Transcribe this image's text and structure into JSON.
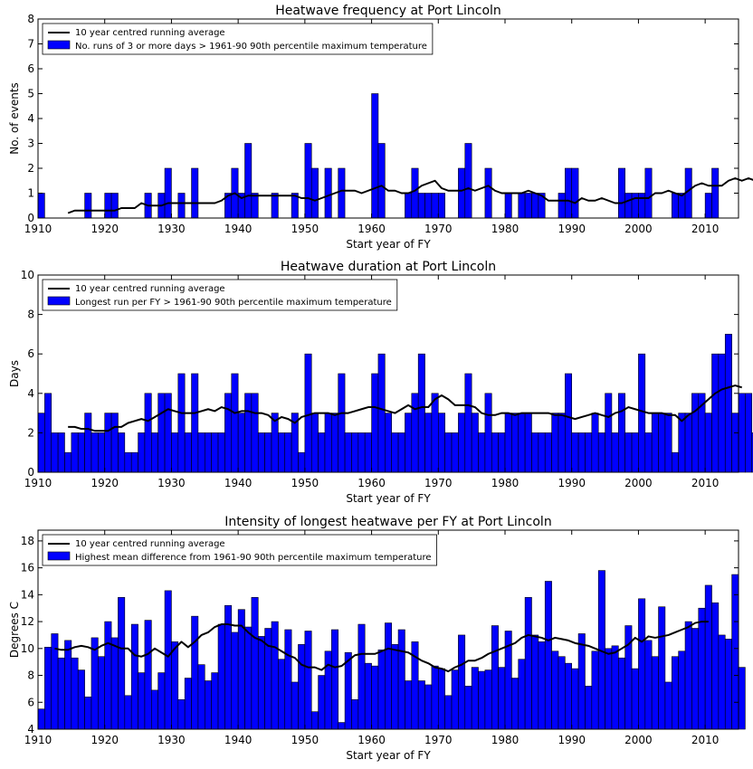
{
  "chart_data": [
    {
      "type": "bar",
      "title": "Heatwave frequency at Port Lincoln",
      "xlabel": "Start year of FY",
      "ylabel": "No. of events",
      "xlim": [
        1910,
        2015
      ],
      "ylim": [
        0,
        8
      ],
      "xticks": [
        1910,
        1920,
        1930,
        1940,
        1950,
        1960,
        1970,
        1980,
        1990,
        2000,
        2010
      ],
      "yticks": [
        0,
        1,
        2,
        3,
        4,
        5,
        6,
        7,
        8
      ],
      "grid": false,
      "legend_position": "top-left",
      "legend_line": "10 year centred running average",
      "legend_bar": "No. runs of 3 or more days > 1961-90 90th percentile maximum temperature",
      "bar_color": "#0000ff",
      "line_color": "#000000",
      "bar_years_start": 1910,
      "values": [
        1,
        0,
        0,
        0,
        0,
        0,
        0,
        1,
        0,
        0,
        1,
        1,
        0,
        0,
        0,
        0,
        1,
        0,
        1,
        2,
        0,
        1,
        0,
        2,
        0,
        0,
        0,
        0,
        1,
        2,
        1,
        3,
        1,
        0,
        0,
        1,
        0,
        0,
        1,
        0,
        3,
        2,
        0,
        2,
        0,
        2,
        0,
        0,
        0,
        0,
        5,
        3,
        0,
        0,
        0,
        1,
        2,
        1,
        1,
        1,
        1,
        0,
        0,
        2,
        3,
        0,
        0,
        2,
        0,
        0,
        1,
        0,
        1,
        1,
        1,
        1,
        0,
        0,
        1,
        2,
        2,
        0,
        0,
        0,
        0,
        0,
        0,
        2,
        1,
        1,
        1,
        2,
        0,
        0,
        0,
        1,
        1,
        2,
        0,
        0,
        1,
        2,
        0
      ],
      "avg_start": 1914,
      "running_avg": [
        0.2,
        0.3,
        0.3,
        0.3,
        0.3,
        0.3,
        0.3,
        0.3,
        0.4,
        0.4,
        0.4,
        0.6,
        0.5,
        0.5,
        0.5,
        0.6,
        0.6,
        0.6,
        0.6,
        0.6,
        0.6,
        0.6,
        0.6,
        0.7,
        0.9,
        1.0,
        0.8,
        0.9,
        0.9,
        0.9,
        0.9,
        0.9,
        0.9,
        0.9,
        0.9,
        0.8,
        0.8,
        0.7,
        0.8,
        0.9,
        1.0,
        1.1,
        1.1,
        1.1,
        1.0,
        1.1,
        1.2,
        1.3,
        1.1,
        1.1,
        1.0,
        1.0,
        1.1,
        1.3,
        1.4,
        1.5,
        1.2,
        1.1,
        1.1,
        1.1,
        1.2,
        1.1,
        1.2,
        1.3,
        1.1,
        1.0,
        1.0,
        1.0,
        1.0,
        1.1,
        1.0,
        0.9,
        0.7,
        0.7,
        0.7,
        0.7,
        0.6,
        0.8,
        0.7,
        0.7,
        0.8,
        0.7,
        0.6,
        0.6,
        0.7,
        0.8,
        0.8,
        0.8,
        1.0,
        1.0,
        1.1,
        1.0,
        0.9,
        1.1,
        1.3,
        1.4,
        1.3,
        1.3,
        1.3,
        1.5,
        1.6,
        1.5,
        1.6,
        1.5,
        1.5
      ]
    },
    {
      "type": "bar",
      "title": "Heatwave duration at Port Lincoln",
      "xlabel": "Start year of FY",
      "ylabel": "Days",
      "xlim": [
        1910,
        2015
      ],
      "ylim": [
        0,
        10
      ],
      "xticks": [
        1910,
        1920,
        1930,
        1940,
        1950,
        1960,
        1970,
        1980,
        1990,
        2000,
        2010
      ],
      "yticks": [
        0,
        2,
        4,
        6,
        8,
        10
      ],
      "grid": false,
      "legend_position": "top-left",
      "legend_line": "10 year centred running average",
      "legend_bar": "Longest run per FY > 1961-90 90th percentile maximum temperature",
      "bar_color": "#0000ff",
      "line_color": "#000000",
      "bar_years_start": 1910,
      "values": [
        3,
        4,
        2,
        2,
        1,
        2,
        2,
        3,
        2,
        2,
        3,
        3,
        2,
        1,
        1,
        2,
        4,
        2,
        4,
        4,
        2,
        5,
        2,
        5,
        2,
        2,
        2,
        2,
        4,
        5,
        3,
        4,
        4,
        2,
        2,
        3,
        2,
        2,
        3,
        1,
        6,
        3,
        2,
        3,
        3,
        5,
        2,
        2,
        2,
        2,
        5,
        6,
        3,
        2,
        2,
        3,
        4,
        6,
        3,
        4,
        3,
        2,
        2,
        3,
        5,
        3,
        2,
        4,
        2,
        2,
        3,
        3,
        3,
        3,
        2,
        2,
        2,
        3,
        3,
        5,
        2,
        2,
        2,
        3,
        2,
        4,
        2,
        4,
        2,
        2,
        6,
        2,
        3,
        3,
        3,
        1,
        3,
        3,
        4,
        4,
        3,
        6,
        6,
        7,
        3,
        4,
        4,
        2
      ],
      "avg_start": 1914,
      "running_avg": [
        2.3,
        2.3,
        2.2,
        2.2,
        2.1,
        2.1,
        2.1,
        2.3,
        2.3,
        2.5,
        2.6,
        2.7,
        2.6,
        2.8,
        3.0,
        3.2,
        3.1,
        3.0,
        3.0,
        3.0,
        3.1,
        3.2,
        3.1,
        3.3,
        3.2,
        3.0,
        3.1,
        3.1,
        3.0,
        3.0,
        2.9,
        2.6,
        2.8,
        2.7,
        2.5,
        2.8,
        2.9,
        3.0,
        3.0,
        3.0,
        2.9,
        3.0,
        3.0,
        3.1,
        3.2,
        3.3,
        3.3,
        3.2,
        3.1,
        3.0,
        3.2,
        3.4,
        3.2,
        3.3,
        3.3,
        3.7,
        3.9,
        3.7,
        3.4,
        3.4,
        3.4,
        3.3,
        3.0,
        2.9,
        2.9,
        3.0,
        3.0,
        2.9,
        3.0,
        3.0,
        3.0,
        3.0,
        3.0,
        2.9,
        2.9,
        2.8,
        2.7,
        2.8,
        2.9,
        3.0,
        2.9,
        2.8,
        3.0,
        3.1,
        3.3,
        3.2,
        3.1,
        3.0,
        3.0,
        3.0,
        2.9,
        2.9,
        2.6,
        2.9,
        3.1,
        3.4,
        3.7,
        4.0,
        4.2,
        4.3,
        4.4,
        4.3
      ]
    },
    {
      "type": "bar",
      "title": "Intensity of longest heatwave per FY at Port Lincoln",
      "xlabel": "Start year of FY",
      "ylabel": "Degrees C",
      "xlim": [
        1910,
        2015
      ],
      "ylim": [
        4,
        18.8
      ],
      "xticks": [
        1910,
        1920,
        1930,
        1940,
        1950,
        1960,
        1970,
        1980,
        1990,
        2000,
        2010
      ],
      "yticks": [
        4,
        6,
        8,
        10,
        12,
        14,
        16,
        18
      ],
      "grid": false,
      "legend_position": "top-left",
      "legend_line": "10 year centred running average",
      "legend_bar": "Highest mean difference from 1961-90 90th percentile maximum temperature",
      "bar_color": "#0000ff",
      "line_color": "#000000",
      "bar_years_start": 1910,
      "values": [
        5.5,
        10.1,
        11.1,
        9.3,
        10.6,
        9.3,
        8.4,
        6.4,
        10.8,
        9.4,
        12.0,
        10.8,
        13.8,
        6.5,
        11.8,
        8.2,
        12.1,
        6.9,
        8.2,
        14.3,
        10.5,
        6.2,
        7.8,
        12.4,
        8.8,
        7.6,
        8.2,
        11.8,
        13.2,
        11.2,
        12.9,
        11.6,
        13.8,
        10.9,
        11.5,
        12.0,
        9.2,
        11.4,
        7.5,
        10.3,
        11.3,
        5.3,
        8.0,
        9.8,
        11.4,
        4.5,
        9.7,
        6.2,
        11.8,
        8.9,
        8.7,
        9.9,
        11.9,
        10.3,
        11.4,
        7.6,
        10.5,
        7.6,
        7.3,
        8.7,
        8.5,
        6.5,
        8.4,
        11.0,
        7.2,
        8.6,
        8.3,
        8.4,
        11.7,
        8.6,
        11.3,
        7.8,
        9.2,
        13.8,
        11.0,
        10.5,
        15.0,
        9.8,
        9.4,
        8.9,
        8.5,
        11.1,
        7.2,
        9.8,
        15.8,
        10.0,
        10.2,
        9.3,
        11.7,
        8.5,
        13.7,
        10.6,
        9.4,
        13.1,
        7.5,
        9.4,
        9.8,
        12.0,
        11.5,
        13.0,
        14.7,
        13.4,
        11.0,
        10.7,
        15.5,
        8.6
      ],
      "avg_start": 1912,
      "running_avg": [
        10.0,
        9.9,
        9.9,
        10.1,
        10.2,
        10.1,
        9.9,
        10.2,
        10.4,
        10.2,
        10.0,
        10.0,
        9.5,
        9.4,
        9.6,
        10.0,
        9.7,
        9.4,
        10.0,
        10.5,
        10.1,
        10.5,
        11.0,
        11.2,
        11.6,
        11.8,
        11.8,
        11.7,
        11.7,
        11.2,
        10.8,
        10.6,
        10.2,
        10.1,
        9.8,
        9.5,
        9.3,
        8.8,
        8.6,
        8.6,
        8.4,
        8.8,
        8.6,
        8.7,
        9.1,
        9.5,
        9.6,
        9.6,
        9.6,
        9.8,
        10.0,
        9.9,
        9.8,
        9.7,
        9.4,
        9.1,
        8.9,
        8.6,
        8.5,
        8.3,
        8.6,
        8.8,
        9.1,
        9.1,
        9.3,
        9.6,
        9.8,
        10.0,
        10.2,
        10.4,
        10.8,
        11.0,
        10.9,
        10.8,
        10.6,
        10.8,
        10.7,
        10.6,
        10.4,
        10.3,
        10.2,
        10.0,
        9.8,
        9.6,
        9.7,
        10.0,
        10.3,
        10.8,
        10.5,
        10.9,
        10.8,
        10.9,
        11.0,
        11.2,
        11.4,
        11.6,
        11.9,
        12.0,
        12.0
      ]
    }
  ]
}
